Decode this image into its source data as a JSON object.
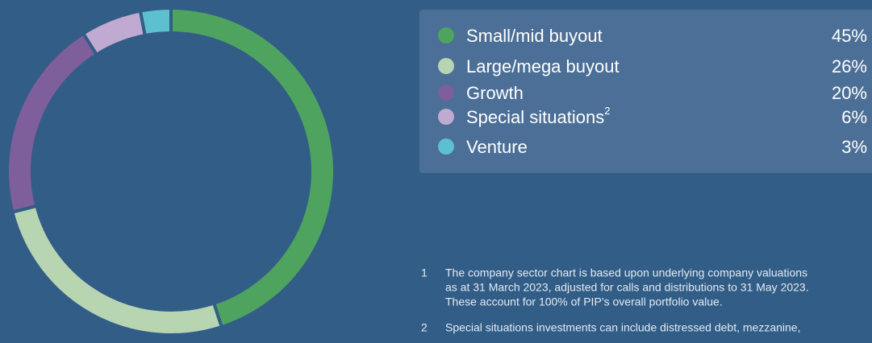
{
  "chart_data": {
    "type": "donut",
    "categories": [
      "Small/mid buyout",
      "Large/mega buyout",
      "Growth",
      "Special situations",
      "Venture"
    ],
    "category_notes": [
      null,
      null,
      null,
      "2",
      null
    ],
    "values": [
      45,
      26,
      20,
      6,
      3
    ],
    "value_labels": [
      "45%",
      "26%",
      "20%",
      "6%",
      "3%"
    ],
    "colors": [
      "#4ea45f",
      "#b8d5b2",
      "#7e5e9b",
      "#c0aad1",
      "#5cc0cf"
    ]
  },
  "footnotes": [
    {
      "number": "1",
      "lines": [
        "The company sector chart is based upon underlying company valuations",
        "as at 31 March 2023, adjusted for calls and distributions to 31 May 2023.",
        "These account for 100% of PIP’s overall portfolio value."
      ]
    },
    {
      "number": "2",
      "lines": [
        "Special situations investments can include distressed debt, mezzanine,"
      ]
    }
  ]
}
